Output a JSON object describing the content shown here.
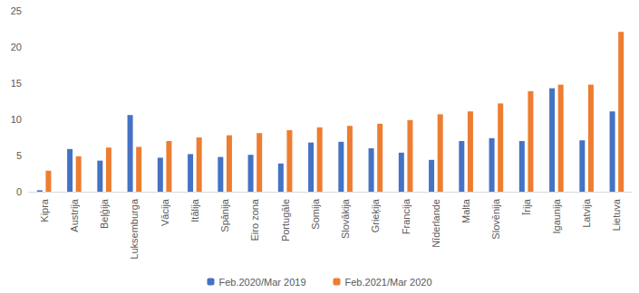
{
  "chart_data": {
    "type": "bar",
    "categories": [
      "Kipra",
      "Austrija",
      "Beļģija",
      "Luksemburga",
      "Vācija",
      "Itālija",
      "Spānija",
      "Eiro zona",
      "Portugāle",
      "Somija",
      "Slovākija",
      "Grieķija",
      "Francija",
      "Nīderlande",
      "Malta",
      "Slovēnija",
      "Īrija",
      "Igaunija",
      "Latvija",
      "Lietuva"
    ],
    "series": [
      {
        "name": "Feb.2020/Mar 2019",
        "color": "#4472c4",
        "values": [
          0.2,
          5.9,
          4.3,
          10.6,
          4.7,
          5.2,
          4.8,
          5.1,
          3.9,
          6.8,
          6.9,
          6.0,
          5.4,
          4.4,
          7.0,
          7.4,
          7.0,
          14.3,
          7.1,
          11.1
        ]
      },
      {
        "name": "Feb.2021/Mar 2020",
        "color": "#ed7d31",
        "values": [
          2.9,
          4.9,
          6.1,
          6.2,
          7.0,
          7.5,
          7.8,
          8.1,
          8.5,
          8.9,
          9.1,
          9.4,
          9.9,
          10.7,
          11.1,
          12.2,
          13.9,
          14.8,
          14.8,
          22.1
        ]
      }
    ],
    "ylim": [
      0,
      25
    ],
    "yticks": [
      0,
      5,
      10,
      15,
      20,
      25
    ],
    "grid": false,
    "legend": "bottom"
  }
}
